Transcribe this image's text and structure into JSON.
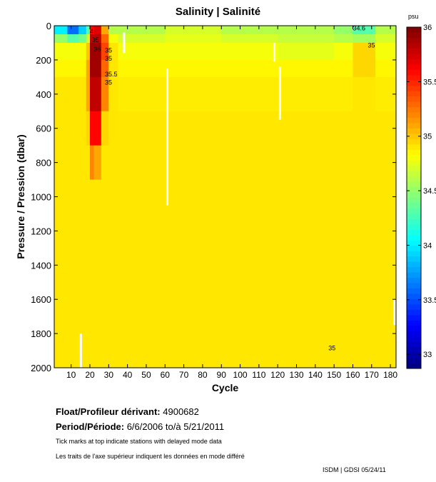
{
  "chart_data": {
    "type": "heatmap",
    "title": "Salinity | Salinité",
    "xlabel": "Cycle",
    "ylabel": "Pressure / Pression (dbar)",
    "xlim": [
      1,
      183
    ],
    "ylim": [
      2000,
      0
    ],
    "xticks": [
      10,
      20,
      30,
      40,
      50,
      60,
      70,
      80,
      90,
      100,
      110,
      120,
      130,
      140,
      150,
      160,
      170,
      180
    ],
    "yticks": [
      0,
      200,
      400,
      600,
      800,
      1000,
      1200,
      1400,
      1600,
      1800,
      2000
    ],
    "colorbar": {
      "label": "psu",
      "range": [
        32.87,
        36.0
      ],
      "ticks": [
        "33",
        "33.5",
        "34",
        "34.5",
        "35",
        "35.5",
        "36"
      ],
      "colormap": "jet"
    },
    "x_edges": [
      1,
      8,
      14,
      18,
      20,
      22,
      26,
      30,
      35,
      60,
      90,
      120,
      150,
      160,
      172,
      183
    ],
    "y_edges": [
      0,
      50,
      100,
      200,
      300,
      500,
      700,
      900,
      1200,
      1600,
      2000
    ],
    "values": [
      [
        34.0,
        33.6,
        33.9,
        34.3,
        35.6,
        35.7,
        35.1,
        34.6,
        34.6,
        34.7,
        34.6,
        34.6,
        34.5,
        34.3,
        34.6
      ],
      [
        34.5,
        34.3,
        34.4,
        34.7,
        35.8,
        35.8,
        35.3,
        34.8,
        34.7,
        34.75,
        34.7,
        34.65,
        34.6,
        34.55,
        34.7
      ],
      [
        34.8,
        34.8,
        34.8,
        35.0,
        35.9,
        35.9,
        35.4,
        34.9,
        34.8,
        34.8,
        34.8,
        34.75,
        34.8,
        34.95,
        34.8
      ],
      [
        34.85,
        34.85,
        34.85,
        35.1,
        35.9,
        35.9,
        35.3,
        34.9,
        34.85,
        34.85,
        34.85,
        34.85,
        34.85,
        34.95,
        34.85
      ],
      [
        34.9,
        34.9,
        34.9,
        35.1,
        35.8,
        35.8,
        35.2,
        34.9,
        34.88,
        34.88,
        34.88,
        34.88,
        34.88,
        34.9,
        34.88
      ],
      [
        34.9,
        34.9,
        34.9,
        34.95,
        35.6,
        35.6,
        34.95,
        34.9,
        34.9,
        34.9,
        34.9,
        34.9,
        34.9,
        34.9,
        34.9
      ],
      [
        34.9,
        34.9,
        34.9,
        34.9,
        35.2,
        35.1,
        34.9,
        34.9,
        34.9,
        34.9,
        34.9,
        34.9,
        34.9,
        34.9,
        34.9
      ],
      [
        34.9,
        34.9,
        34.9,
        34.9,
        34.9,
        34.9,
        34.9,
        34.9,
        34.9,
        34.9,
        34.9,
        34.9,
        34.9,
        34.9,
        34.9
      ],
      [
        34.9,
        34.9,
        34.9,
        34.9,
        34.9,
        34.9,
        34.9,
        34.9,
        34.9,
        34.9,
        34.9,
        34.9,
        34.9,
        34.9,
        34.9
      ],
      [
        34.9,
        34.9,
        34.9,
        34.9,
        34.9,
        34.9,
        34.9,
        34.9,
        34.9,
        34.9,
        34.9,
        34.9,
        34.9,
        34.9,
        34.9
      ]
    ],
    "gaps": [
      {
        "cycle": 38,
        "p": [
          40,
          160
        ]
      },
      {
        "cycle": 61,
        "p": [
          250,
          1050
        ]
      },
      {
        "cycle": 118,
        "p": [
          100,
          210
        ]
      },
      {
        "cycle": 121,
        "p": [
          240,
          550
        ]
      },
      {
        "cycle": 15,
        "p": [
          1800,
          2000
        ]
      },
      {
        "cycle": 182,
        "p": [
          1600,
          1750
        ]
      }
    ],
    "contour_labels": [
      {
        "text": "4",
        "cycle": 20,
        "p": 30
      },
      {
        "text": "35",
        "cycle": 21,
        "p": 80
      },
      {
        "text": "36",
        "cycle": 22,
        "p": 100
      },
      {
        "text": "35",
        "cycle": 28,
        "p": 140
      },
      {
        "text": "35",
        "cycle": 28,
        "p": 180
      },
      {
        "text": "35.5",
        "cycle": 28,
        "p": 280
      },
      {
        "text": "35",
        "cycle": 28,
        "p": 320
      },
      {
        "text": "35",
        "cycle": 168,
        "p": 110
      },
      {
        "text": "34.6",
        "cycle": 160,
        "p": 10
      },
      {
        "text": "35",
        "cycle": 147,
        "p": 1880
      }
    ]
  },
  "info": {
    "float_label": "Float/Profileur dérivant:",
    "float_id": "4900682",
    "period_label": "Period/Période:",
    "period_value": "6/6/2006  to/à  5/21/2011",
    "note_en": "Tick marks at top indicate stations with delayed mode data",
    "note_fr": "Les traits de l'axe supérieur indiquent les données en mode différé",
    "footer": "ISDM | GDSI  05/24/11"
  }
}
